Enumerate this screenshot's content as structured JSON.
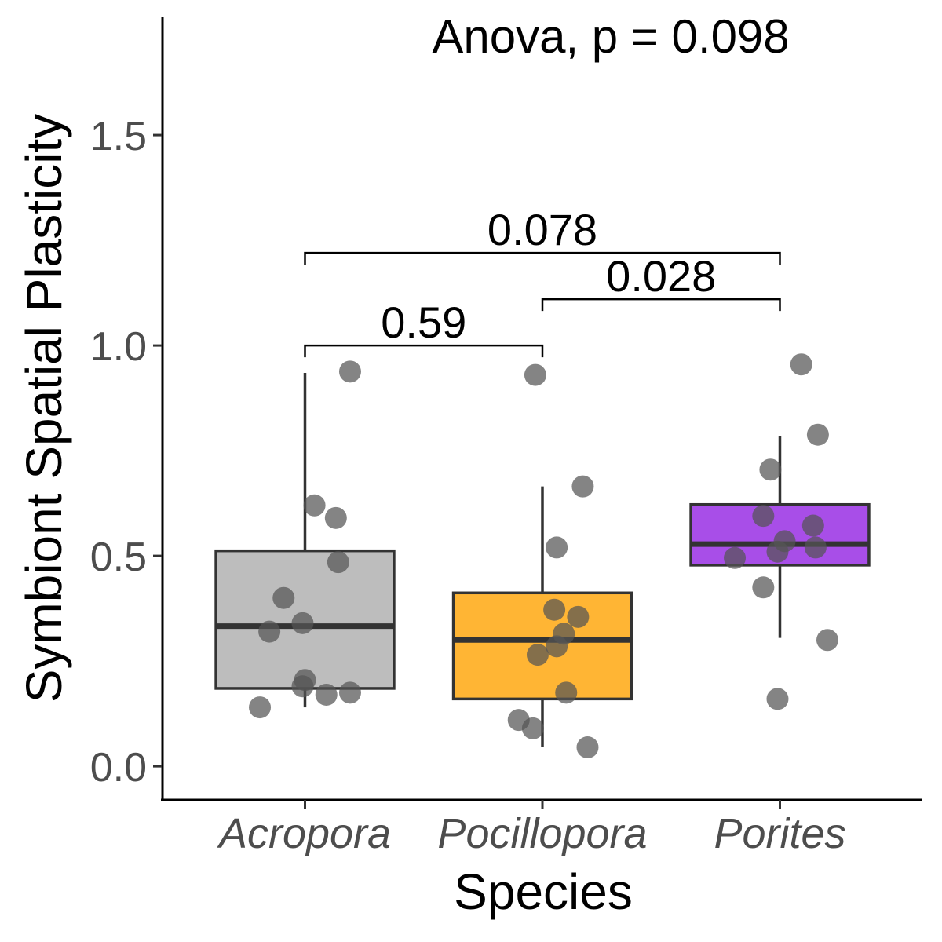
{
  "chart_data": {
    "type": "box",
    "title": "",
    "annotation": "Anova, p = 0.098",
    "xlabel": "Species",
    "ylabel": "Symbiont Spatial Plasticity",
    "ylim": [
      -0.08,
      1.78
    ],
    "yticks": [
      0.0,
      0.5,
      1.0,
      1.5
    ],
    "ytick_labels": [
      "0.0",
      "0.5",
      "1.0",
      "1.5"
    ],
    "grid": false,
    "legend": "none",
    "categories": [
      "Acropora",
      "Pocillopora",
      "Porites"
    ],
    "colors": [
      "#bdbdbd",
      "#ffb534",
      "#a84ee8"
    ],
    "point_color": "#555555",
    "boxes": [
      {
        "name": "Acropora",
        "whisker_low": 0.14,
        "q1": 0.185,
        "median": 0.333,
        "q3": 0.512,
        "whisker_high": 0.935
      },
      {
        "name": "Pocillopora",
        "whisker_low": 0.045,
        "q1": 0.16,
        "median": 0.3,
        "q3": 0.412,
        "whisker_high": 0.665
      },
      {
        "name": "Porites",
        "whisker_low": 0.305,
        "q1": 0.478,
        "median": 0.528,
        "q3": 0.622,
        "whisker_high": 0.785
      }
    ],
    "points": [
      {
        "group": "Acropora",
        "values": [
          0.938,
          0.62,
          0.59,
          0.485,
          0.4,
          0.34,
          0.32,
          0.205,
          0.19,
          0.17,
          0.175,
          0.14
        ],
        "jitter": [
          0.19,
          0.04,
          0.13,
          0.14,
          -0.09,
          -0.01,
          -0.15,
          0.0,
          -0.01,
          0.09,
          0.19,
          -0.19
        ]
      },
      {
        "group": "Pocillopora",
        "values": [
          0.93,
          0.665,
          0.52,
          0.372,
          0.355,
          0.315,
          0.285,
          0.265,
          0.175,
          0.11,
          0.09,
          0.045
        ],
        "jitter": [
          -0.03,
          0.17,
          0.06,
          0.05,
          0.15,
          0.09,
          0.06,
          -0.02,
          0.1,
          -0.1,
          -0.04,
          0.19
        ]
      },
      {
        "group": "Porites",
        "values": [
          0.955,
          0.788,
          0.705,
          0.595,
          0.572,
          0.535,
          0.52,
          0.51,
          0.495,
          0.425,
          0.3,
          0.16
        ],
        "jitter": [
          0.09,
          0.16,
          -0.04,
          -0.07,
          0.14,
          0.02,
          0.15,
          -0.01,
          -0.19,
          -0.07,
          0.2,
          -0.01
        ]
      }
    ],
    "comparisons": [
      {
        "groups": [
          "Acropora",
          "Pocillopora"
        ],
        "p_label": "0.59",
        "y": 1.0
      },
      {
        "groups": [
          "Pocillopora",
          "Porites"
        ],
        "p_label": "0.028",
        "y": 1.11
      },
      {
        "groups": [
          "Acropora",
          "Porites"
        ],
        "p_label": "0.078",
        "y": 1.22
      }
    ]
  }
}
